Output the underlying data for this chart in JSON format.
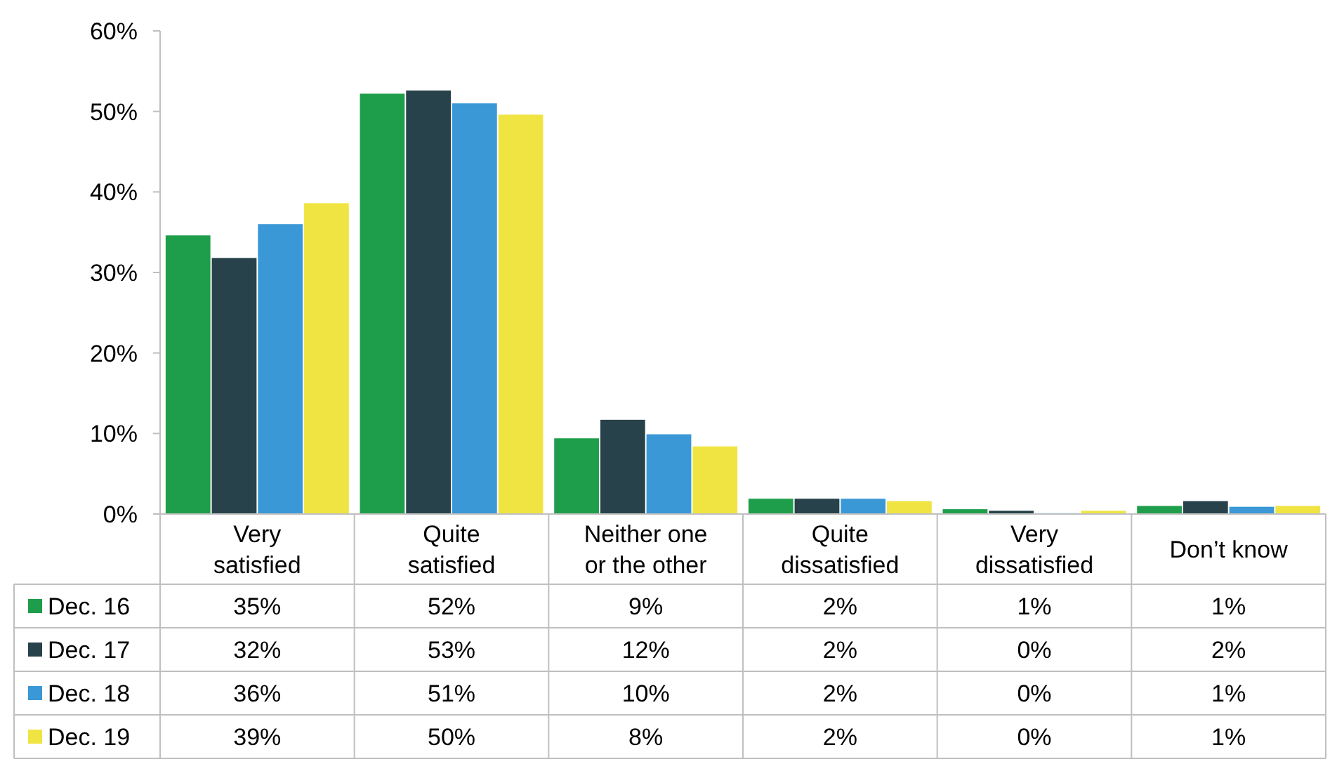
{
  "chart_data": {
    "type": "bar",
    "categories": [
      "Very satisfied",
      "Quite satisfied",
      "Neither one or the other",
      "Quite dissatisfied",
      "Very dissatisfied",
      "Don’t know"
    ],
    "series": [
      {
        "name": "Dec. 16",
        "color": "#1e9e4a",
        "values": [
          34.6,
          52.2,
          9.4,
          1.9,
          0.6,
          1.0
        ],
        "value_labels": [
          "35%",
          "52%",
          "9%",
          "2%",
          "1%",
          "1%"
        ]
      },
      {
        "name": "Dec. 17",
        "color": "#27424a",
        "values": [
          31.8,
          52.6,
          11.7,
          1.9,
          0.4,
          1.6
        ],
        "value_labels": [
          "32%",
          "53%",
          "12%",
          "2%",
          "0%",
          "2%"
        ]
      },
      {
        "name": "Dec. 18",
        "color": "#3a98d6",
        "values": [
          36.0,
          51.0,
          9.9,
          1.9,
          0.1,
          0.9
        ],
        "value_labels": [
          "36%",
          "51%",
          "10%",
          "2%",
          "0%",
          "1%"
        ]
      },
      {
        "name": "Dec. 19",
        "color": "#f0e442",
        "values": [
          38.6,
          49.6,
          8.4,
          1.6,
          0.4,
          1.0
        ],
        "value_labels": [
          "39%",
          "50%",
          "8%",
          "2%",
          "0%",
          "1%"
        ]
      }
    ],
    "ylim": [
      0,
      60
    ],
    "yticks": [
      {
        "value": 0,
        "label": "0%"
      },
      {
        "value": 10,
        "label": "10%"
      },
      {
        "value": 20,
        "label": "20%"
      },
      {
        "value": 30,
        "label": "30%"
      },
      {
        "value": 40,
        "label": "40%"
      },
      {
        "value": 50,
        "label": "50%"
      },
      {
        "value": 60,
        "label": "60%"
      }
    ],
    "grid": false,
    "legend": "bottom"
  }
}
